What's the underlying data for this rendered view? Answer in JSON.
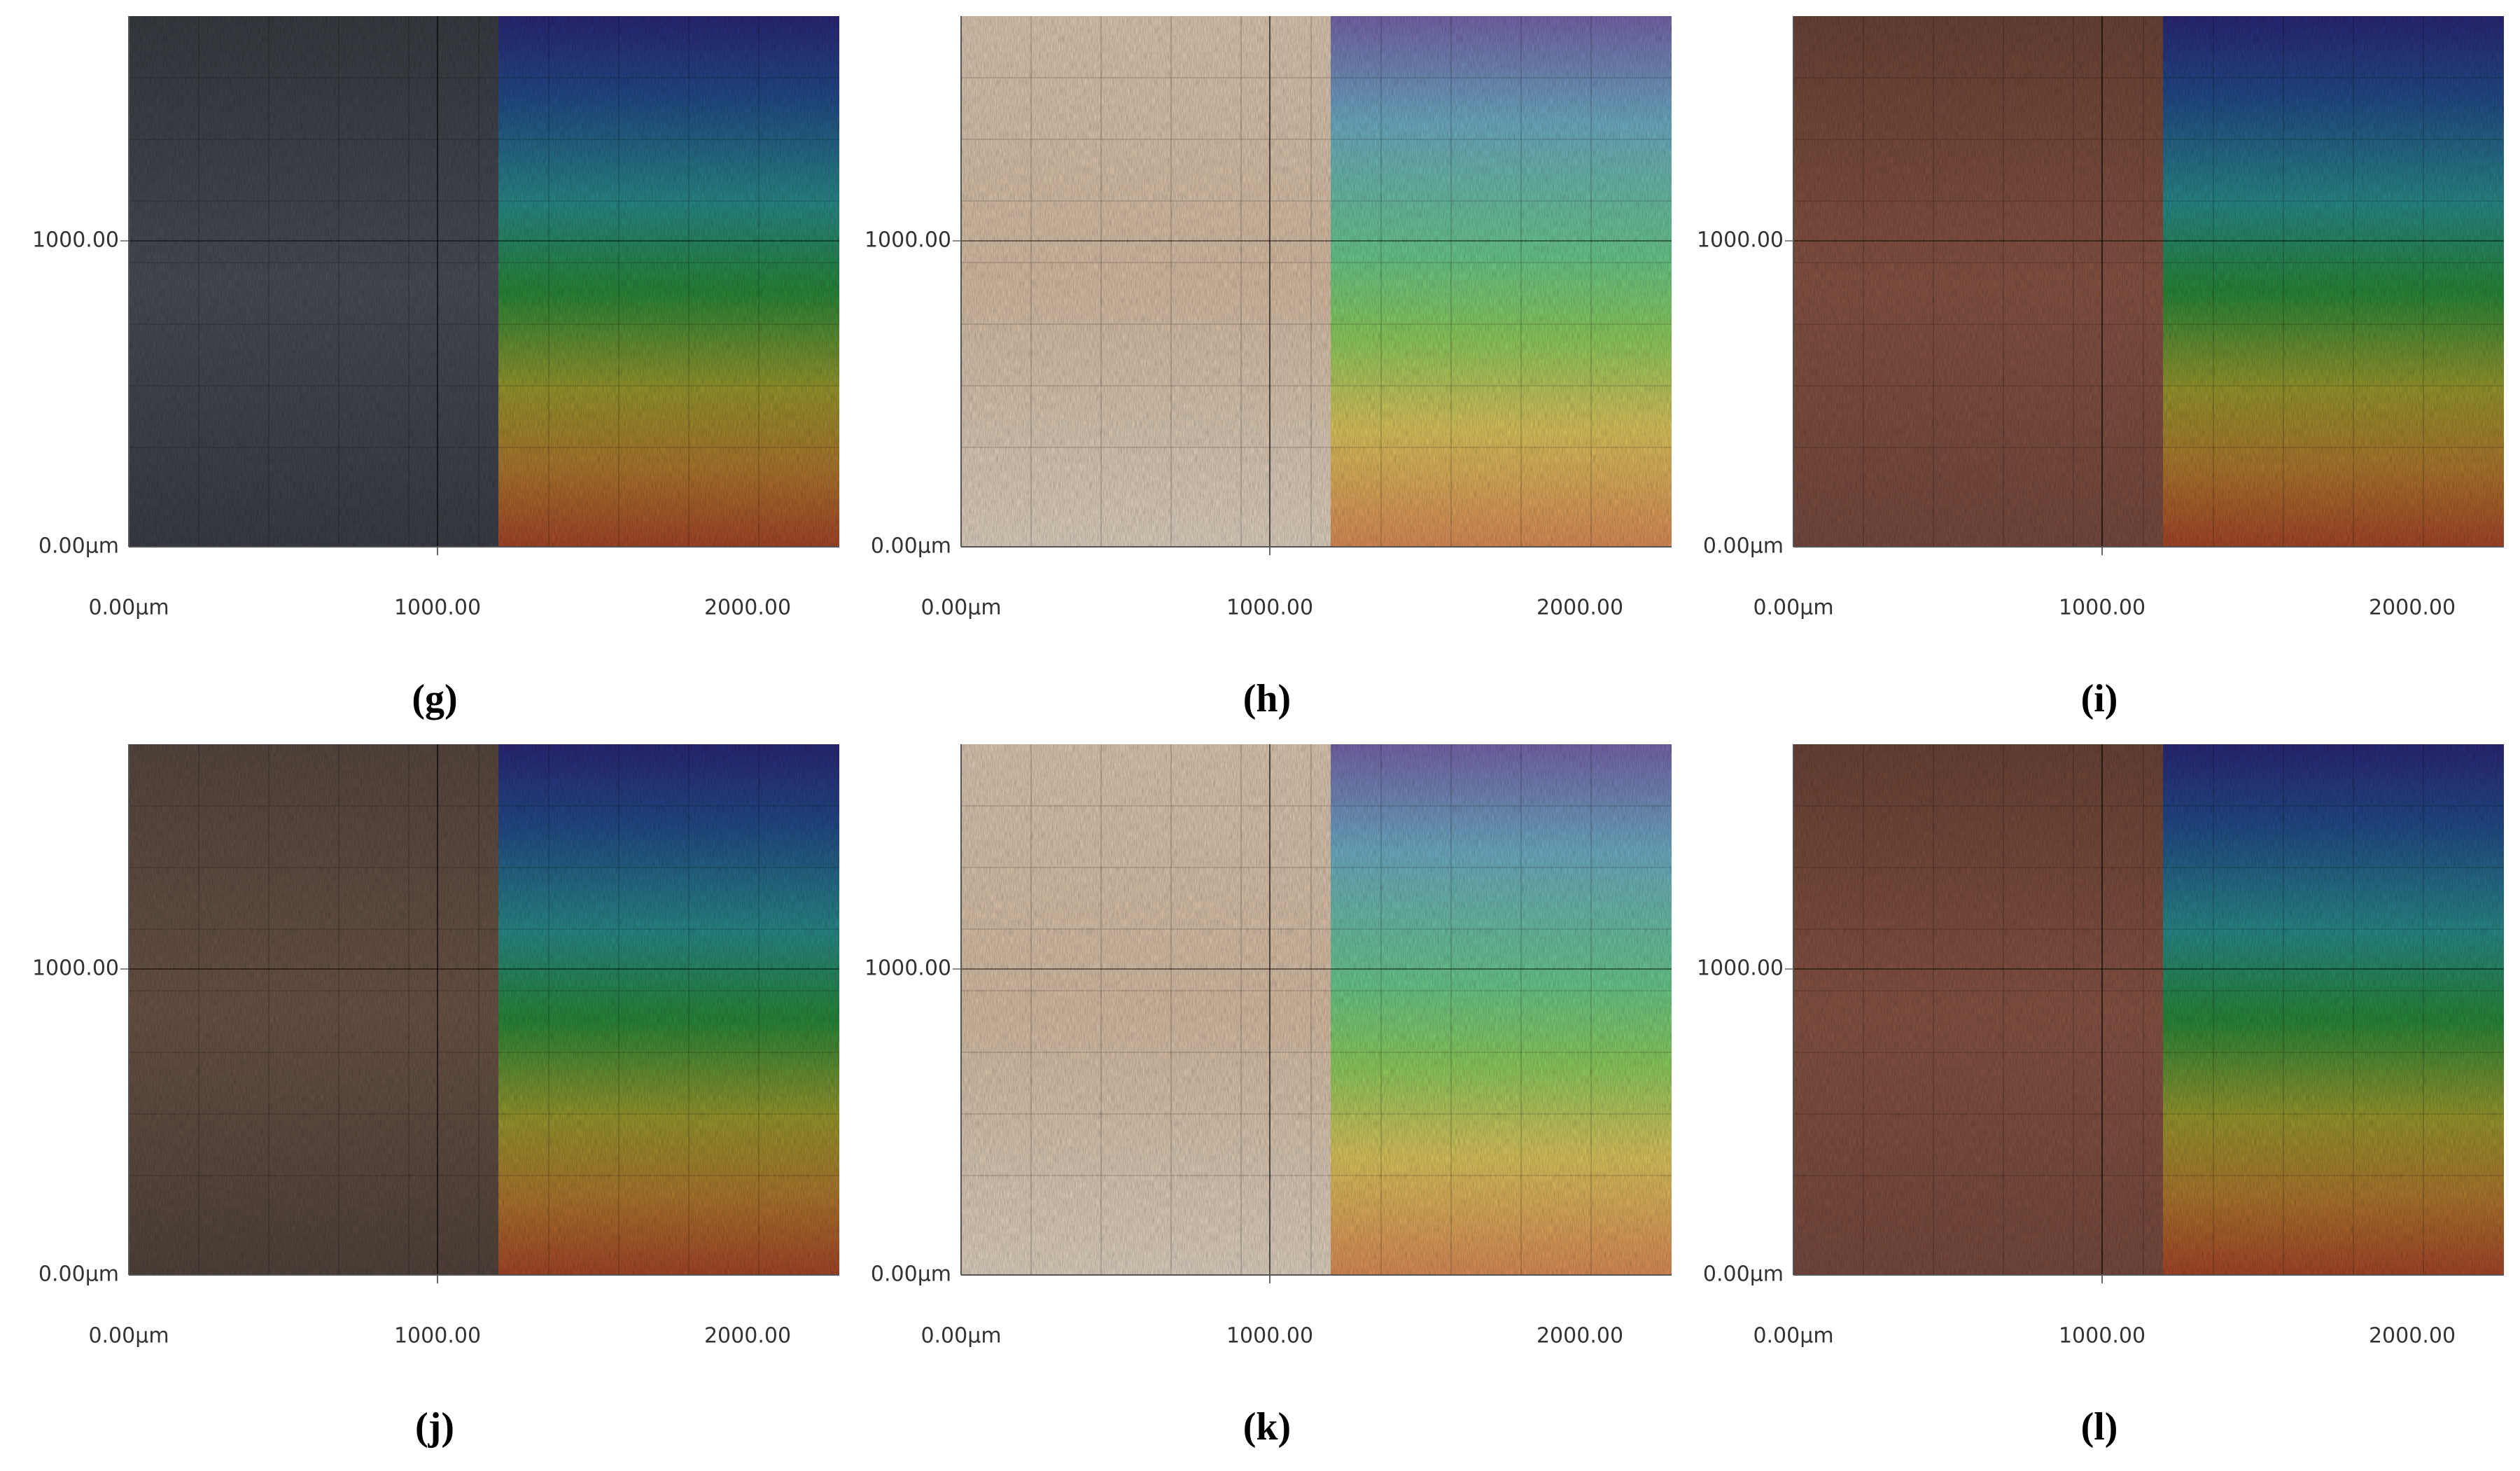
{
  "panels": [
    {
      "label": "(g)",
      "xtick_labels": [
        "0.00µm",
        "1000.00",
        "2000.00"
      ],
      "ytick_labels": [
        "1000.00",
        "0.00µm"
      ]
    },
    {
      "label": "(h)",
      "xtick_labels": [
        "0.00µm",
        "1000.00",
        "2000.00"
      ],
      "ytick_labels": [
        "1000.00",
        "0.00µm"
      ]
    },
    {
      "label": "(i)",
      "xtick_labels": [
        "0.00µm",
        "1000.00",
        "2000.00"
      ],
      "ytick_labels": [
        "1000.00",
        "0.00µm"
      ]
    },
    {
      "label": "(j)",
      "xtick_labels": [
        "0.00µm",
        "1000.00",
        "2000.00"
      ],
      "ytick_labels": [
        "1000.00",
        "0.00µm"
      ]
    },
    {
      "label": "(k)",
      "xtick_labels": [
        "0.00µm",
        "1000.00",
        "2000.00"
      ],
      "ytick_labels": [
        "1000.00",
        "0.00µm"
      ]
    },
    {
      "label": "(l)",
      "xtick_labels": [
        "0.00µm",
        "1000.00",
        "2000.00"
      ],
      "ytick_labels": [
        "1000.00",
        "0.00µm"
      ]
    }
  ]
}
